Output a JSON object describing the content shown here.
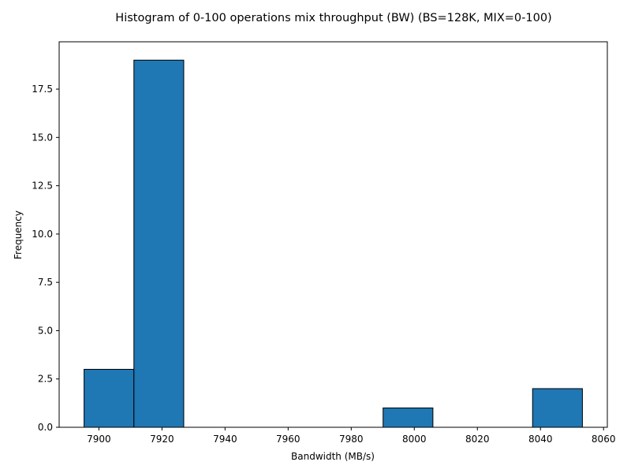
{
  "chart_data": {
    "type": "bar",
    "title": "Histogram of 0-100 operations mix throughput (BW) (BS=128K, MIX=0-100)",
    "xlabel": "Bandwidth (MB/s)",
    "ylabel": "Frequency",
    "bins": [
      {
        "start": 7895.3,
        "end": 7911.1,
        "count": 3
      },
      {
        "start": 7911.1,
        "end": 7926.9,
        "count": 19
      },
      {
        "start": 7926.9,
        "end": 7942.7,
        "count": 0
      },
      {
        "start": 7942.7,
        "end": 7958.5,
        "count": 0
      },
      {
        "start": 7958.5,
        "end": 7974.3,
        "count": 0
      },
      {
        "start": 7974.3,
        "end": 7990.1,
        "count": 0
      },
      {
        "start": 7990.1,
        "end": 8005.9,
        "count": 1
      },
      {
        "start": 8005.9,
        "end": 8021.7,
        "count": 0
      },
      {
        "start": 8021.7,
        "end": 8037.5,
        "count": 0
      },
      {
        "start": 8037.5,
        "end": 8053.3,
        "count": 2
      }
    ],
    "xlim": [
      7887.4,
      8061.2
    ],
    "ylim": [
      0,
      19.95
    ],
    "xticks": [
      7900,
      7920,
      7940,
      7960,
      7980,
      8000,
      8020,
      8040,
      8060
    ],
    "xtick_labels": [
      "7900",
      "7920",
      "7940",
      "7960",
      "7980",
      "8000",
      "8020",
      "8040",
      "8060"
    ],
    "yticks": [
      0,
      2.5,
      5,
      7.5,
      10,
      12.5,
      15,
      17.5
    ],
    "ytick_labels": [
      "0.0",
      "2.5",
      "5.0",
      "7.5",
      "10.0",
      "12.5",
      "15.0",
      "17.5"
    ],
    "grid": false,
    "colors": {
      "bar_fill": "#1f77b4",
      "bar_edge": "#000000",
      "axes": "#000000"
    }
  }
}
